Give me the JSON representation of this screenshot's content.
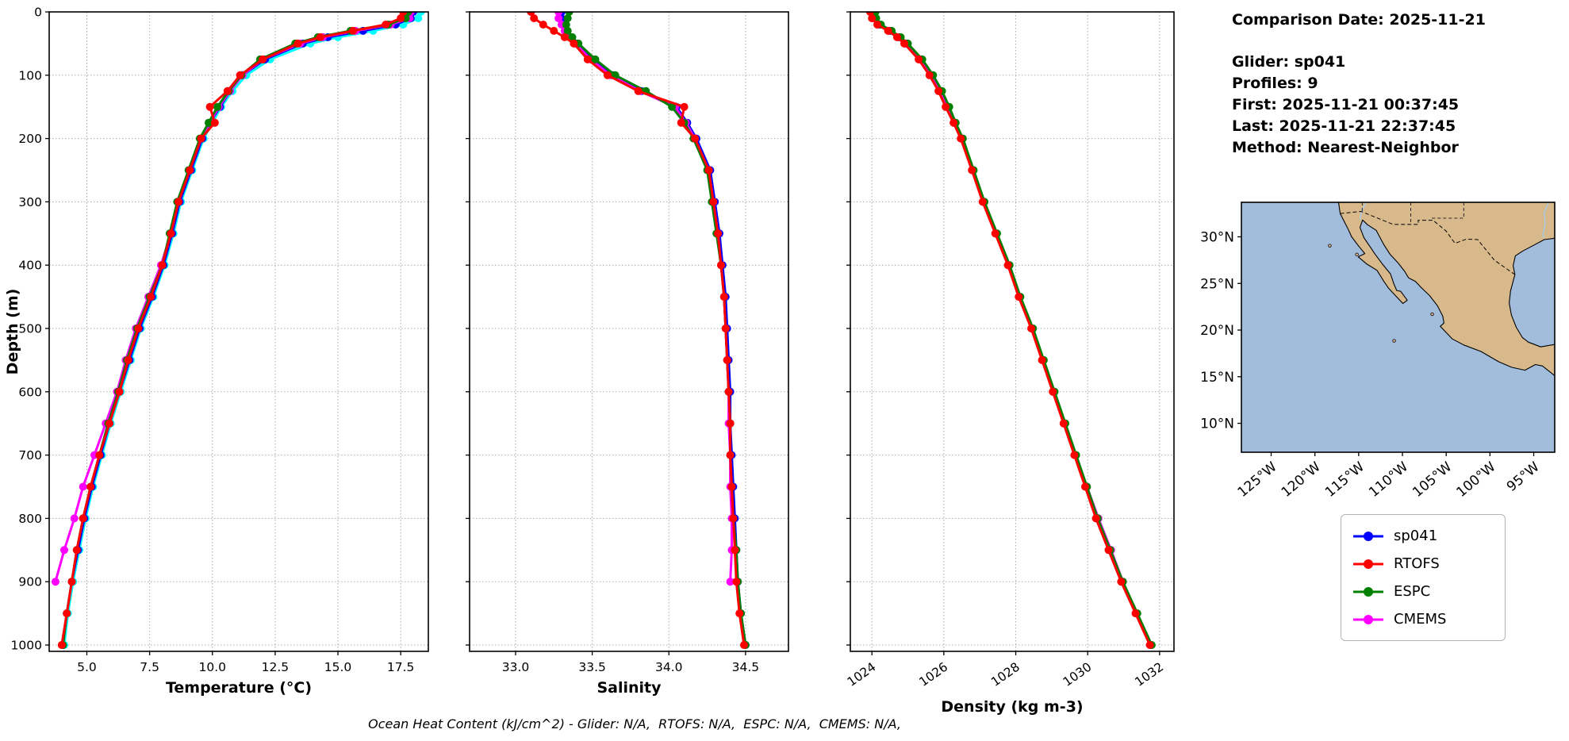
{
  "info": {
    "comparison_date": "Comparison Date: 2025-11-21",
    "glider": "Glider: sp041",
    "profiles": "Profiles: 9",
    "first": "First: 2025-11-21 00:37:45",
    "last": "Last: 2025-11-21 22:37:45",
    "method": "Method: Nearest-Neighbor"
  },
  "caption": "Ocean Heat Content (kJ/cm^2) - Glider: N/A,  RTOFS: N/A,  ESPC: N/A,  CMEMS: N/A,",
  "legend": {
    "items": [
      {
        "label": "sp041",
        "color": "#0000ff"
      },
      {
        "label": "RTOFS",
        "color": "#ff0000"
      },
      {
        "label": "ESPC",
        "color": "#008000"
      },
      {
        "label": "CMEMS",
        "color": "#ff00ff"
      }
    ]
  },
  "map": {
    "ocean_color": "#a2bcdb",
    "land_color": "#d8b98c",
    "river_color": "#a8cbe8",
    "extent": {
      "lon_min": -128.4,
      "lon_max": -92.6,
      "lat_min": 6.9,
      "lat_max": 33.7
    },
    "lat_ticks": [
      {
        "value": 30,
        "label": "30°N"
      },
      {
        "value": 25,
        "label": "25°N"
      },
      {
        "value": 20,
        "label": "20°N"
      },
      {
        "value": 15,
        "label": "15°N"
      },
      {
        "value": 10,
        "label": "10°N"
      }
    ],
    "lon_ticks": [
      {
        "value": -125,
        "label": "125°W"
      },
      {
        "value": -120,
        "label": "120°W"
      },
      {
        "value": -115,
        "label": "115°W"
      },
      {
        "value": -110,
        "label": "110°W"
      },
      {
        "value": -105,
        "label": "105°W"
      },
      {
        "value": -100,
        "label": "100°W"
      },
      {
        "value": -95,
        "label": "95°W"
      }
    ]
  },
  "chart_data": [
    {
      "id": "temperature",
      "type": "line",
      "xlabel": "Temperature (°C)",
      "ylabel": "Depth (m)",
      "xlim": [
        3.5,
        18.6
      ],
      "ylim": [
        0,
        1010
      ],
      "grid": true,
      "xticks": [
        5.0,
        7.5,
        10.0,
        12.5,
        15.0,
        17.5
      ],
      "xtick_labels": [
        "5.0",
        "7.5",
        "10.0",
        "12.5",
        "15.0",
        "17.5"
      ],
      "xtick_rotation": 0,
      "yticks": [
        0,
        100,
        200,
        300,
        400,
        500,
        600,
        700,
        800,
        900,
        1000
      ],
      "ytick_labels": [
        "0",
        "100",
        "200",
        "300",
        "400",
        "500",
        "600",
        "700",
        "800",
        "900",
        "1000"
      ],
      "show_ytick_labels": true,
      "depths": [
        0,
        10,
        20,
        30,
        40,
        50,
        75,
        100,
        125,
        150,
        175,
        200,
        250,
        300,
        350,
        400,
        450,
        500,
        550,
        600,
        650,
        700,
        750,
        800,
        850,
        900,
        950,
        1000
      ],
      "series": [
        {
          "name": "sp041 (individual profiles)",
          "color": "#00ffff",
          "in_legend": false,
          "values": [
            18.3,
            18.2,
            17.6,
            16.4,
            15.0,
            13.9,
            12.3,
            11.35,
            10.8,
            10.35,
            10.0,
            9.65,
            9.2,
            8.75,
            8.45,
            8.1,
            7.65,
            7.15,
            6.75,
            6.35,
            5.95,
            5.6,
            5.25,
            4.95,
            4.7,
            4.45,
            4.25,
            4.1
          ]
        },
        {
          "name": "sp041",
          "color": "#0000ff",
          "in_legend": true,
          "values": [
            18.0,
            17.9,
            17.3,
            16.0,
            14.6,
            13.6,
            12.1,
            11.2,
            10.7,
            10.3,
            9.9,
            9.6,
            9.15,
            8.7,
            8.4,
            8.05,
            7.6,
            7.1,
            6.7,
            6.3,
            5.9,
            5.55,
            5.2,
            4.9,
            4.65,
            4.4,
            4.2,
            4.05
          ]
        },
        {
          "name": "CMEMS",
          "color": "#ff00ff",
          "in_legend": true,
          "values": [
            17.9,
            17.85,
            17.1,
            15.7,
            14.4,
            13.5,
            12.0,
            11.2,
            10.7,
            10.25,
            9.9,
            9.55,
            9.1,
            8.65,
            8.35,
            7.95,
            7.45,
            6.95,
            6.55,
            6.2,
            5.75,
            5.3,
            4.85,
            4.5,
            4.1,
            3.75,
            null,
            null
          ]
        },
        {
          "name": "ESPC",
          "color": "#008000",
          "in_legend": true,
          "values": [
            17.8,
            17.7,
            17.0,
            15.5,
            14.2,
            13.3,
            11.9,
            11.15,
            10.65,
            10.2,
            9.85,
            9.5,
            9.05,
            8.6,
            8.3,
            8.0,
            7.5,
            7.0,
            6.6,
            6.25,
            5.85,
            5.5,
            5.15,
            4.85,
            4.6,
            4.4,
            4.2,
            4.05
          ]
        },
        {
          "name": "RTOFS",
          "color": "#ff0000",
          "in_legend": true,
          "values": [
            17.6,
            17.5,
            16.9,
            15.6,
            14.3,
            13.4,
            12.0,
            11.1,
            10.6,
            9.9,
            10.1,
            9.55,
            9.1,
            8.65,
            8.35,
            8.0,
            7.55,
            7.05,
            6.65,
            6.3,
            5.9,
            5.5,
            5.15,
            4.85,
            4.6,
            4.4,
            4.2,
            4.0
          ]
        }
      ]
    },
    {
      "id": "salinity",
      "type": "line",
      "xlabel": "Salinity",
      "ylabel": "Depth (m)",
      "xlim": [
        32.7,
        34.78
      ],
      "ylim": [
        0,
        1010
      ],
      "grid": true,
      "xticks": [
        33.0,
        33.5,
        34.0,
        34.5
      ],
      "xtick_labels": [
        "33.0",
        "33.5",
        "34.0",
        "34.5"
      ],
      "xtick_rotation": 0,
      "yticks": [
        0,
        100,
        200,
        300,
        400,
        500,
        600,
        700,
        800,
        900,
        1000
      ],
      "ytick_labels": [
        "0",
        "100",
        "200",
        "300",
        "400",
        "500",
        "600",
        "700",
        "800",
        "900",
        "1000"
      ],
      "show_ytick_labels": false,
      "depths": [
        0,
        10,
        20,
        30,
        40,
        50,
        75,
        100,
        125,
        150,
        175,
        200,
        250,
        300,
        350,
        400,
        450,
        500,
        550,
        600,
        650,
        700,
        750,
        800,
        850,
        900,
        950,
        1000
      ],
      "series": [
        {
          "name": "sp041",
          "color": "#0000ff",
          "in_legend": true,
          "values": [
            33.3,
            33.3,
            33.31,
            33.33,
            33.36,
            33.4,
            33.5,
            33.63,
            33.82,
            34.05,
            34.12,
            34.18,
            34.27,
            34.3,
            34.33,
            34.35,
            34.37,
            34.38,
            34.39,
            34.4,
            34.4,
            34.41,
            34.42,
            34.43,
            34.44,
            34.45,
            34.47,
            34.5
          ]
        },
        {
          "name": "CMEMS",
          "color": "#ff00ff",
          "in_legend": true,
          "values": [
            33.28,
            33.28,
            33.3,
            33.32,
            33.35,
            33.39,
            33.49,
            33.62,
            33.81,
            34.04,
            34.11,
            34.17,
            34.26,
            34.29,
            34.32,
            34.34,
            34.36,
            34.37,
            34.38,
            34.39,
            34.39,
            34.4,
            34.4,
            34.41,
            34.41,
            34.4,
            null,
            null
          ]
        },
        {
          "name": "ESPC",
          "color": "#008000",
          "in_legend": true,
          "values": [
            33.35,
            33.34,
            33.33,
            33.34,
            33.37,
            33.41,
            33.52,
            33.65,
            33.85,
            34.02,
            34.1,
            34.16,
            34.25,
            34.28,
            34.31,
            34.34,
            34.36,
            34.37,
            34.38,
            34.39,
            34.4,
            34.4,
            34.41,
            34.42,
            34.44,
            34.45,
            34.47,
            34.5
          ]
        },
        {
          "name": "RTOFS",
          "color": "#ff0000",
          "in_legend": true,
          "values": [
            33.1,
            33.12,
            33.18,
            33.25,
            33.32,
            33.38,
            33.47,
            33.6,
            33.8,
            34.1,
            34.08,
            34.17,
            34.26,
            34.29,
            34.32,
            34.34,
            34.36,
            34.37,
            34.38,
            34.39,
            34.4,
            34.4,
            34.41,
            34.42,
            34.43,
            34.44,
            34.46,
            34.49
          ]
        }
      ]
    },
    {
      "id": "density",
      "type": "line",
      "xlabel": "Density (kg m-3)",
      "ylabel": "Depth (m)",
      "xlim": [
        1023.4,
        1032.4
      ],
      "ylim": [
        0,
        1010
      ],
      "grid": true,
      "xticks": [
        1024,
        1026,
        1028,
        1030,
        1032
      ],
      "xtick_labels": [
        "1024",
        "1026",
        "1028",
        "1030",
        "1032"
      ],
      "xtick_rotation": -35,
      "yticks": [
        0,
        100,
        200,
        300,
        400,
        500,
        600,
        700,
        800,
        900,
        1000
      ],
      "ytick_labels": [
        "0",
        "100",
        "200",
        "300",
        "400",
        "500",
        "600",
        "700",
        "800",
        "900",
        "1000"
      ],
      "show_ytick_labels": false,
      "depths": [
        0,
        10,
        20,
        30,
        40,
        50,
        75,
        100,
        125,
        150,
        175,
        200,
        250,
        300,
        350,
        400,
        450,
        500,
        550,
        600,
        650,
        700,
        750,
        800,
        850,
        900,
        950,
        1000
      ],
      "series": [
        {
          "name": "sp041",
          "color": "#0000ff",
          "in_legend": true,
          "values": [
            1024.05,
            1024.08,
            1024.2,
            1024.5,
            1024.75,
            1024.95,
            1025.35,
            1025.65,
            1025.9,
            1026.1,
            1026.3,
            1026.5,
            1026.8,
            1027.1,
            1027.45,
            1027.8,
            1028.1,
            1028.45,
            1028.75,
            1029.05,
            1029.35,
            1029.65,
            1029.95,
            1030.25,
            1030.6,
            1030.95,
            1031.35,
            1031.75
          ]
        },
        {
          "name": "CMEMS",
          "color": "#ff00ff",
          "in_legend": true,
          "values": [
            1024.0,
            1024.03,
            1024.18,
            1024.48,
            1024.73,
            1024.93,
            1025.33,
            1025.63,
            1025.88,
            1026.08,
            1026.28,
            1026.48,
            1026.79,
            1027.09,
            1027.44,
            1027.79,
            1028.09,
            1028.44,
            1028.74,
            1029.04,
            1029.34,
            1029.66,
            1029.98,
            1030.3,
            1030.65,
            1030.98,
            null,
            null
          ]
        },
        {
          "name": "ESPC",
          "color": "#008000",
          "in_legend": true,
          "values": [
            1024.1,
            1024.12,
            1024.25,
            1024.55,
            1024.8,
            1025.0,
            1025.4,
            1025.7,
            1025.95,
            1026.15,
            1026.33,
            1026.53,
            1026.83,
            1027.13,
            1027.48,
            1027.83,
            1028.13,
            1028.48,
            1028.78,
            1029.08,
            1029.38,
            1029.68,
            1029.98,
            1030.28,
            1030.63,
            1030.98,
            1031.38,
            1031.78
          ]
        },
        {
          "name": "RTOFS",
          "color": "#ff0000",
          "in_legend": true,
          "values": [
            1023.95,
            1024.0,
            1024.15,
            1024.45,
            1024.7,
            1024.9,
            1025.3,
            1025.6,
            1025.85,
            1026.05,
            1026.27,
            1026.47,
            1026.78,
            1027.08,
            1027.43,
            1027.78,
            1028.08,
            1028.43,
            1028.73,
            1029.03,
            1029.33,
            1029.63,
            1029.93,
            1030.23,
            1030.58,
            1030.93,
            1031.33,
            1031.73
          ]
        }
      ]
    }
  ]
}
